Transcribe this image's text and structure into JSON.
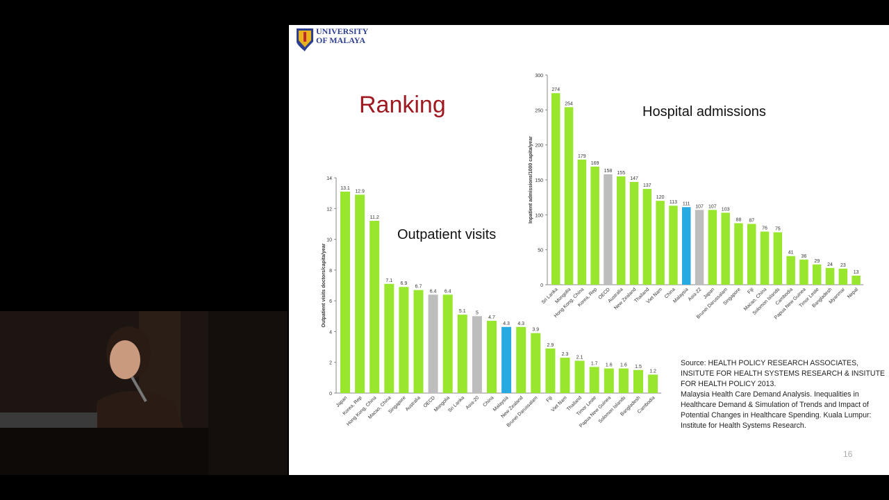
{
  "slide": {
    "logo_line1": "UNIVERSITY",
    "logo_line2": "OF MALAYA",
    "heading": "Ranking",
    "page_number": "16",
    "source_lines": [
      "Source: HEALTH POLICY RESEARCH ASSOCIATES,",
      "INSITUTE FOR HEALTH SYSTEMS RESEARCH & INSITUTE",
      "FOR HEALTH POLICY 2013.",
      "Malaysia Health Care Demand Analysis.  Inequalities in",
      "Healthcare Demand & Simulation of Trends and Impact of",
      "Potential Changes in Healthcare Spending. Kuala Lumpur:",
      "Institute for Health Systems Research."
    ]
  },
  "colors": {
    "green": "#99e62e",
    "grey": "#bdbdbd",
    "blue": "#27a9e1",
    "title_red": "#a01820"
  },
  "chart_data": [
    {
      "type": "bar",
      "title": "Outpatient visits",
      "ylabel": "Outpatient visits doctors/capita/year",
      "ylim": [
        0,
        14
      ],
      "yticks": [
        0,
        2,
        4,
        6,
        8,
        10,
        12,
        14
      ],
      "categories": [
        "Japan",
        "Korea, Rep",
        "Hong Kong, China",
        "Macao, China",
        "Singapore",
        "Australia",
        "OECD",
        "Mongolia",
        "Sri Lanka",
        "Asia-20",
        "China",
        "Malaysia",
        "New Zealand",
        "Brunei Darussalam",
        "Fiji",
        "Viet Nam",
        "Thailand",
        "Timor Leste",
        "Papua New Guinea",
        "Solomon Islands",
        "Bangladesh",
        "Cambodia"
      ],
      "values": [
        13.1,
        12.9,
        11.2,
        7.1,
        6.9,
        6.7,
        6.4,
        6.4,
        5.1,
        5,
        4.7,
        4.3,
        4.3,
        3.9,
        2.9,
        2.3,
        2.1,
        1.7,
        1.6,
        1.6,
        1.5,
        1.2
      ],
      "value_labels": [
        "13.1",
        "12.9",
        "11.2",
        "7.1",
        "6.9",
        "6.7",
        "6.4",
        "6.4",
        "5.1",
        "5",
        "4.7",
        "4.3",
        "4.3",
        "3.9",
        "2.9",
        "2.3",
        "2.1",
        "1.7",
        "1.6",
        "1.6",
        "1.5",
        "1.2"
      ],
      "highlight": {
        "OECD": "grey",
        "Asia-20": "grey",
        "Malaysia": "blue"
      }
    },
    {
      "type": "bar",
      "title": "Hospital admissions",
      "ylabel": "Inpatient admissions/1000 capita/year",
      "ylim": [
        0,
        300
      ],
      "yticks": [
        0,
        50,
        100,
        150,
        200,
        250,
        300
      ],
      "categories": [
        "Sri Lanka",
        "Mongolia",
        "Hong Kong, China",
        "Korea, Rep",
        "OECD",
        "Australia",
        "New Zealand",
        "Thailand",
        "Viet Nam",
        "China",
        "Malaysia",
        "Asia-22",
        "Japan",
        "Brunei Darussalam",
        "Singapore",
        "Fiji",
        "Macao, China",
        "Solomon Islands",
        "Cambodia",
        "Papua New Guinea",
        "Timor Leste",
        "Bangladesh",
        "Myanmar",
        "Nepal"
      ],
      "values": [
        274,
        254,
        179,
        169,
        158,
        155,
        147,
        137,
        120,
        113,
        111,
        107,
        107,
        103,
        88,
        87,
        76,
        75,
        41,
        36,
        29,
        24,
        23,
        13
      ],
      "value_labels": [
        "274",
        "254",
        "179",
        "169",
        "158",
        "155",
        "147",
        "137",
        "120",
        "113",
        "111",
        "107",
        "107",
        "103",
        "88",
        "87",
        "76",
        "75",
        "41",
        "36",
        "29",
        "24",
        "23",
        "13"
      ],
      "highlight": {
        "OECD": "grey",
        "Asia-22": "grey",
        "Malaysia": "blue"
      }
    }
  ]
}
